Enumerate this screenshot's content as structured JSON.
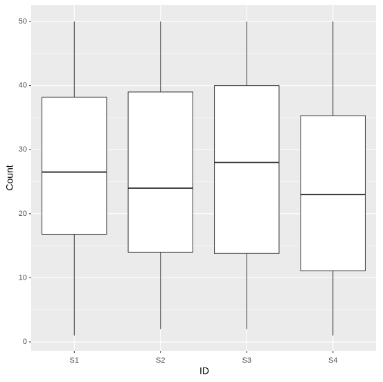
{
  "chart_data": {
    "type": "box",
    "x_label": "ID",
    "y_label": "Count",
    "categories": [
      "S1",
      "S2",
      "S3",
      "S4"
    ],
    "boxes": [
      {
        "min": 1,
        "q1": 16.8,
        "median": 26.5,
        "q3": 38.2,
        "max": 50
      },
      {
        "min": 2,
        "q1": 14,
        "median": 24,
        "q3": 39,
        "max": 50
      },
      {
        "min": 2,
        "q1": 13.8,
        "median": 28,
        "q3": 40,
        "max": 50
      },
      {
        "min": 1,
        "q1": 11.1,
        "median": 23,
        "q3": 35.3,
        "max": 50
      }
    ],
    "ylim": [
      -1.4,
      52.6
    ],
    "yticks": [
      0,
      10,
      20,
      30,
      40,
      50
    ],
    "grid": true,
    "box_fill": "#ffffff",
    "line_color": "#333333",
    "panel_color": "#ebebeb"
  }
}
